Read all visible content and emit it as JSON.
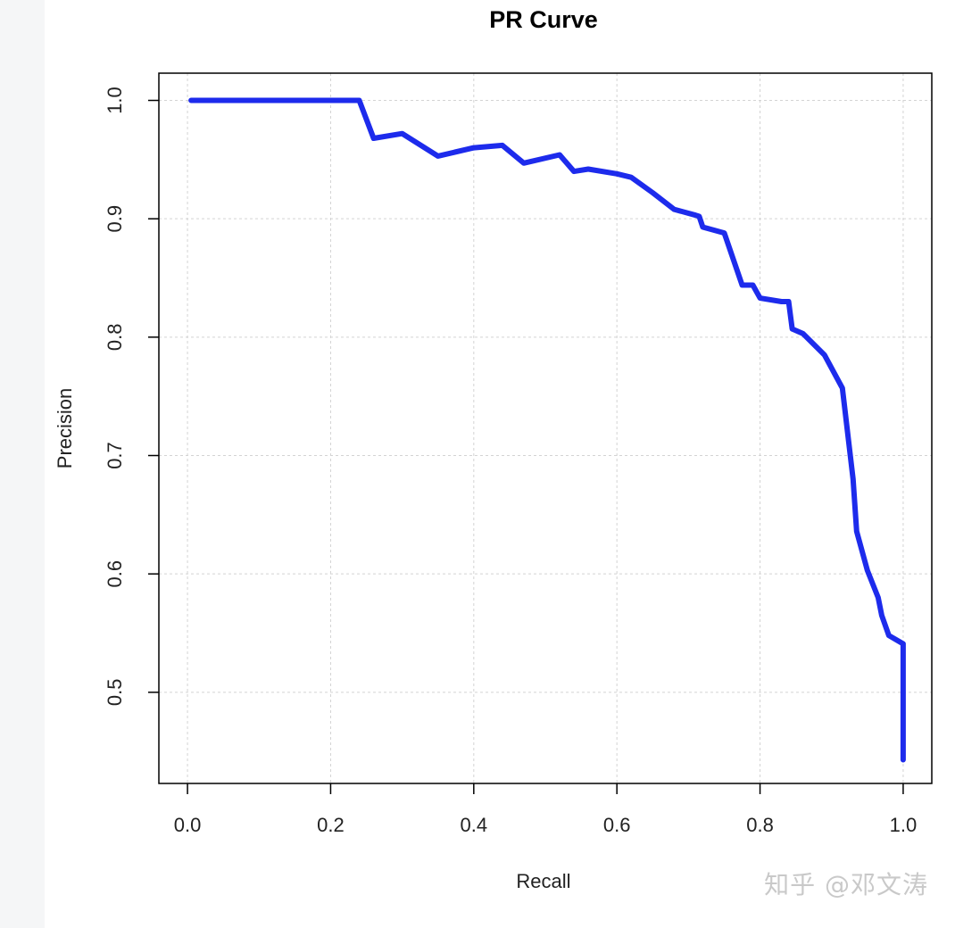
{
  "watermark": "知乎 @邓文涛",
  "chart_data": {
    "type": "line",
    "title": "PR Curve",
    "xlabel": "Recall",
    "ylabel": "Precision",
    "xlim": [
      -0.04,
      1.04
    ],
    "ylim": [
      0.423,
      1.023
    ],
    "xticks": [
      0.0,
      0.2,
      0.4,
      0.6,
      0.8,
      1.0
    ],
    "xtick_labels": [
      "0.0",
      "0.2",
      "0.4",
      "0.6",
      "0.8",
      "1.0"
    ],
    "yticks": [
      0.5,
      0.6,
      0.7,
      0.8,
      0.9,
      1.0
    ],
    "ytick_labels": [
      "0.5",
      "0.6",
      "0.7",
      "0.8",
      "0.9",
      "1.0"
    ],
    "grid": true,
    "line_color": "#1d2bec",
    "series": [
      {
        "x": [
          0.005,
          0.24,
          0.26,
          0.3,
          0.35,
          0.4,
          0.44,
          0.47,
          0.52,
          0.54,
          0.56,
          0.6,
          0.62,
          0.65,
          0.68,
          0.71,
          0.715,
          0.72,
          0.75,
          0.775,
          0.79,
          0.8,
          0.83,
          0.84,
          0.845,
          0.86,
          0.89,
          0.915,
          0.93,
          0.935,
          0.95,
          0.965,
          0.97,
          0.98,
          1.0,
          1.0
        ],
        "y": [
          1.0,
          1.0,
          0.968,
          0.972,
          0.953,
          0.96,
          0.962,
          0.947,
          0.954,
          0.94,
          0.942,
          0.938,
          0.935,
          0.922,
          0.908,
          0.903,
          0.902,
          0.893,
          0.888,
          0.844,
          0.844,
          0.833,
          0.83,
          0.83,
          0.807,
          0.803,
          0.785,
          0.757,
          0.68,
          0.636,
          0.603,
          0.58,
          0.565,
          0.548,
          0.541,
          0.443
        ]
      }
    ]
  }
}
